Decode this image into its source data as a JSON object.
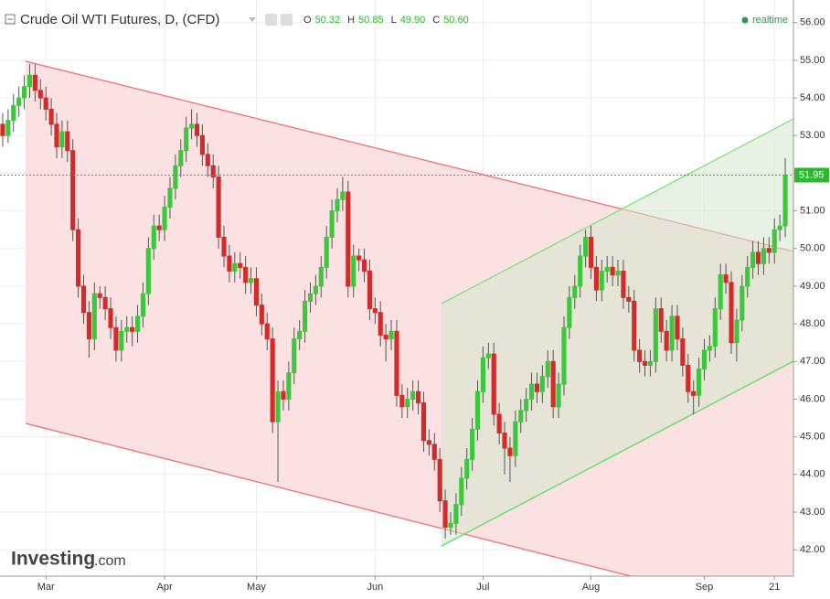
{
  "header": {
    "title": "Crude Oil WTI Futures, D, (CFD)",
    "ohlc": [
      {
        "label": "O",
        "value": "50.32"
      },
      {
        "label": "H",
        "value": "50.85"
      },
      {
        "label": "L",
        "value": "49.90"
      },
      {
        "label": "C",
        "value": "50.60"
      }
    ],
    "status": "realtime"
  },
  "logo": {
    "name": "Investing",
    "suffix": ".com"
  },
  "chart_data": {
    "type": "candlestick",
    "title": "Crude Oil WTI Futures, D, (CFD)",
    "up_color": "#3cc83c",
    "down_color": "#d42a2a",
    "last_price": 51.95,
    "last_price_color": "#2db92d",
    "ylim": [
      41.3,
      56.6
    ],
    "yticks": [
      {
        "value": 42,
        "label": "42.00"
      },
      {
        "value": 43,
        "label": "43.00"
      },
      {
        "value": 44,
        "label": "44.00"
      },
      {
        "value": 45,
        "label": "45.00"
      },
      {
        "value": 46,
        "label": "46.00"
      },
      {
        "value": 47,
        "label": "47.00"
      },
      {
        "value": 48,
        "label": "48.00"
      },
      {
        "value": 49,
        "label": "49.00"
      },
      {
        "value": 50,
        "label": "50.00"
      },
      {
        "value": 51,
        "label": "51.00"
      },
      {
        "value": 52,
        "label": "52.00"
      },
      {
        "value": 53,
        "label": "53.00"
      },
      {
        "value": 54,
        "label": "54.00"
      },
      {
        "value": 55,
        "label": "55.00"
      },
      {
        "value": 56,
        "label": "56.00"
      }
    ],
    "categories": [
      null,
      null,
      null,
      null,
      null,
      null,
      null,
      null,
      "Mar",
      null,
      null,
      null,
      null,
      null,
      null,
      null,
      null,
      null,
      null,
      null,
      null,
      null,
      null,
      null,
      null,
      null,
      null,
      null,
      null,
      null,
      "Apr",
      null,
      null,
      null,
      null,
      null,
      null,
      null,
      null,
      null,
      null,
      null,
      null,
      null,
      null,
      null,
      null,
      "May",
      null,
      null,
      null,
      null,
      null,
      null,
      null,
      null,
      null,
      null,
      null,
      null,
      null,
      null,
      null,
      null,
      null,
      null,
      null,
      null,
      null,
      "Jun",
      null,
      null,
      null,
      null,
      null,
      null,
      null,
      null,
      null,
      null,
      null,
      null,
      null,
      null,
      null,
      null,
      null,
      null,
      null,
      "Jul",
      null,
      null,
      null,
      null,
      null,
      null,
      null,
      null,
      null,
      null,
      null,
      null,
      null,
      null,
      null,
      null,
      null,
      null,
      null,
      "Aug",
      null,
      null,
      null,
      null,
      null,
      null,
      null,
      null,
      null,
      null,
      null,
      null,
      null,
      null,
      null,
      null,
      null,
      null,
      null,
      null,
      "Sep",
      null,
      null,
      null,
      null,
      null,
      null,
      null,
      null,
      null,
      null,
      null,
      null,
      "21",
      null,
      null
    ],
    "open": [
      53.3,
      53.0,
      53.4,
      53.8,
      54.0,
      54.3,
      54.6,
      54.2,
      54.0,
      53.7,
      53.3,
      52.7,
      53.1,
      52.6,
      50.5,
      49.0,
      48.3,
      47.6,
      48.8,
      48.7,
      48.4,
      47.9,
      47.3,
      47.8,
      47.9,
      47.8,
      48.2,
      48.8,
      50.0,
      50.6,
      50.5,
      51.1,
      51.6,
      52.2,
      52.6,
      53.2,
      53.3,
      53.0,
      52.5,
      52.2,
      51.9,
      50.3,
      49.8,
      49.4,
      49.6,
      49.5,
      49.1,
      49.2,
      48.5,
      48.0,
      47.6,
      45.4,
      46.2,
      46.0,
      46.7,
      47.6,
      47.8,
      48.6,
      48.8,
      49.0,
      49.5,
      50.3,
      51.0,
      51.3,
      51.5,
      49.0,
      49.8,
      49.7,
      49.4,
      48.4,
      48.3,
      47.7,
      47.6,
      47.8,
      46.1,
      45.8,
      46.0,
      46.2,
      45.9,
      44.9,
      44.8,
      44.4,
      43.3,
      42.6,
      42.7,
      43.2,
      43.9,
      44.4,
      45.2,
      46.2,
      47.1,
      47.2,
      45.6,
      45.1,
      44.7,
      44.5,
      45.4,
      45.7,
      46.0,
      46.4,
      46.2,
      46.6,
      47.0,
      45.8,
      46.4,
      47.9,
      48.7,
      49.0,
      49.8,
      50.3,
      49.5,
      48.9,
      49.4,
      49.5,
      49.3,
      49.4,
      48.7,
      48.6,
      47.3,
      47.0,
      46.9,
      47.0,
      48.4,
      47.8,
      47.3,
      48.2,
      47.6,
      46.9,
      46.2,
      46.1,
      46.8,
      47.3,
      47.4,
      48.4,
      49.3,
      49.1,
      47.5,
      48.1,
      49.0,
      49.5,
      49.9,
      49.6,
      50.0,
      49.9,
      50.5,
      50.6
    ],
    "high": [
      53.6,
      53.7,
      54.1,
      54.3,
      54.6,
      54.9,
      54.9,
      54.5,
      54.3,
      54.0,
      53.6,
      53.4,
      53.4,
      52.9,
      50.8,
      49.3,
      48.6,
      49.1,
      49.0,
      49.0,
      48.7,
      48.2,
      48.1,
      48.2,
      48.2,
      48.5,
      49.1,
      50.3,
      50.9,
      50.9,
      51.4,
      51.9,
      52.5,
      52.9,
      53.5,
      53.7,
      53.6,
      53.3,
      52.8,
      52.5,
      52.2,
      50.6,
      50.1,
      49.9,
      49.9,
      49.8,
      49.5,
      49.5,
      48.8,
      48.3,
      47.9,
      46.5,
      46.5,
      47.0,
      47.9,
      48.1,
      48.9,
      49.1,
      49.3,
      49.8,
      50.6,
      51.3,
      51.6,
      51.9,
      51.8,
      50.1,
      50.0,
      50.0,
      49.7,
      48.7,
      48.6,
      48.0,
      48.1,
      48.1,
      46.4,
      46.3,
      46.5,
      46.5,
      46.2,
      45.2,
      45.1,
      44.7,
      43.6,
      43.0,
      43.5,
      44.2,
      44.7,
      45.5,
      46.5,
      47.4,
      47.5,
      47.5,
      45.9,
      45.4,
      45.0,
      45.7,
      46.0,
      46.3,
      46.7,
      46.7,
      46.9,
      47.3,
      47.3,
      46.7,
      48.2,
      49.0,
      49.3,
      50.1,
      50.5,
      50.6,
      49.8,
      49.7,
      49.8,
      49.8,
      49.7,
      49.7,
      49.0,
      48.9,
      47.6,
      47.3,
      47.3,
      48.7,
      48.7,
      48.1,
      48.5,
      48.5,
      47.9,
      47.2,
      46.5,
      47.1,
      47.6,
      47.7,
      48.7,
      49.6,
      49.6,
      49.4,
      48.4,
      49.3,
      49.8,
      50.2,
      50.2,
      50.3,
      50.3,
      50.8,
      50.9,
      52.4
    ],
    "low": [
      52.7,
      52.8,
      53.1,
      53.5,
      53.7,
      54.0,
      53.9,
      53.7,
      53.4,
      53.0,
      52.4,
      52.4,
      52.3,
      50.2,
      48.7,
      48.0,
      47.1,
      47.3,
      48.4,
      48.1,
      47.6,
      47.0,
      47.0,
      47.5,
      47.4,
      47.5,
      47.9,
      48.5,
      49.7,
      50.2,
      50.2,
      50.8,
      51.3,
      51.9,
      52.3,
      52.9,
      52.7,
      52.2,
      51.9,
      51.6,
      50.0,
      49.5,
      49.1,
      49.1,
      49.2,
      48.8,
      48.8,
      48.2,
      47.7,
      47.3,
      45.1,
      43.8,
      45.7,
      45.7,
      46.4,
      47.3,
      47.5,
      48.3,
      48.5,
      48.7,
      49.2,
      50.0,
      50.7,
      51.0,
      48.7,
      48.7,
      49.4,
      49.1,
      48.1,
      48.0,
      47.4,
      47.0,
      47.3,
      45.8,
      45.5,
      45.5,
      45.7,
      45.6,
      44.6,
      44.5,
      44.1,
      43.0,
      42.3,
      42.4,
      42.4,
      42.9,
      43.6,
      44.1,
      44.9,
      45.9,
      46.8,
      45.3,
      44.8,
      44.0,
      43.8,
      44.2,
      45.1,
      45.4,
      45.7,
      45.9,
      45.9,
      46.3,
      45.5,
      45.5,
      46.1,
      47.6,
      48.4,
      48.7,
      49.5,
      49.2,
      48.6,
      48.6,
      49.1,
      49.0,
      49.0,
      48.4,
      48.3,
      47.0,
      46.7,
      46.6,
      46.6,
      46.7,
      47.5,
      47.0,
      47.0,
      47.3,
      46.6,
      45.9,
      45.6,
      45.8,
      46.5,
      47.0,
      47.1,
      48.1,
      48.8,
      47.2,
      47.0,
      47.8,
      48.7,
      49.2,
      49.3,
      49.3,
      49.6,
      49.6,
      50.2,
      50.3
    ],
    "close": [
      53.0,
      53.4,
      53.8,
      54.0,
      54.3,
      54.6,
      54.2,
      54.0,
      53.7,
      53.3,
      52.7,
      53.1,
      52.6,
      50.5,
      49.0,
      48.3,
      47.6,
      48.8,
      48.7,
      48.4,
      47.9,
      47.3,
      47.8,
      47.9,
      47.8,
      48.2,
      48.8,
      50.0,
      50.6,
      50.5,
      51.1,
      51.6,
      52.2,
      52.6,
      53.2,
      53.3,
      53.0,
      52.5,
      52.2,
      51.9,
      50.3,
      49.8,
      49.4,
      49.6,
      49.5,
      49.1,
      49.2,
      48.5,
      48.0,
      47.6,
      45.4,
      46.2,
      46.0,
      46.7,
      47.6,
      47.8,
      48.6,
      48.8,
      49.0,
      49.5,
      50.3,
      51.0,
      51.3,
      51.5,
      49.0,
      49.8,
      49.7,
      49.4,
      48.4,
      48.3,
      47.7,
      47.6,
      47.8,
      46.1,
      45.8,
      46.0,
      46.2,
      45.9,
      44.9,
      44.8,
      44.4,
      43.3,
      42.6,
      42.7,
      43.2,
      43.9,
      44.4,
      45.2,
      46.2,
      47.1,
      47.2,
      45.6,
      45.1,
      44.7,
      44.5,
      45.4,
      45.7,
      46.0,
      46.4,
      46.2,
      46.6,
      47.0,
      45.8,
      46.4,
      47.9,
      48.7,
      49.0,
      49.8,
      50.3,
      49.5,
      48.9,
      49.4,
      49.5,
      49.3,
      49.4,
      48.7,
      48.6,
      47.3,
      47.0,
      46.9,
      47.0,
      48.4,
      47.8,
      47.3,
      48.2,
      47.6,
      46.9,
      46.2,
      46.1,
      46.8,
      47.3,
      47.4,
      48.4,
      49.3,
      49.1,
      47.5,
      48.1,
      49.0,
      49.5,
      49.9,
      49.6,
      50.0,
      49.9,
      50.5,
      50.6,
      51.95
    ]
  }
}
